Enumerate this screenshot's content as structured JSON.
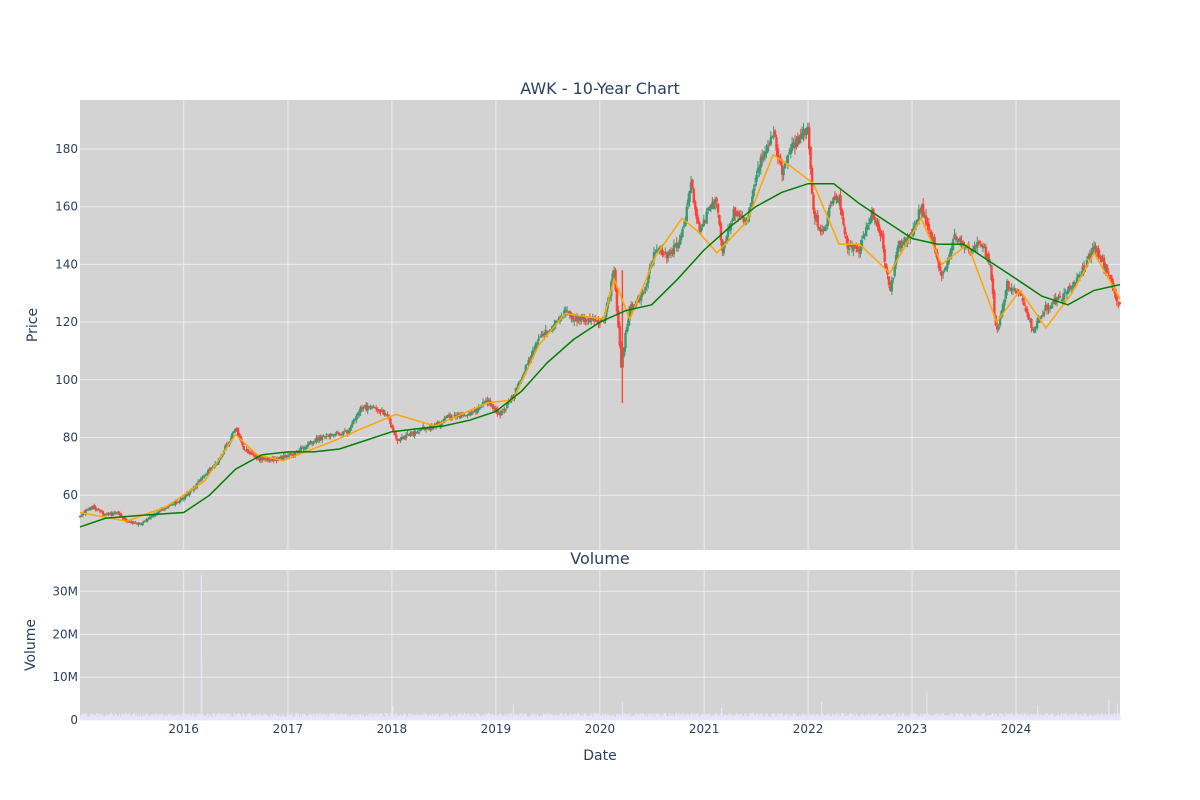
{
  "chart_data": [
    {
      "type": "candlestick",
      "title": "AWK - 10-Year Chart",
      "ylabel": "Price",
      "ylim": [
        41,
        197
      ],
      "y_ticks": [
        60,
        80,
        100,
        120,
        140,
        160,
        180
      ],
      "xlim": [
        "2015-01-02",
        "2024-12-31"
      ],
      "colors": {
        "increasing": "#3d9970",
        "decreasing": "#ff4136",
        "ma_short": "#ffa500",
        "ma_long": "#008000",
        "plot_bg": "#d3d3d3",
        "grid": "#ebebf5"
      },
      "grid": true,
      "legend": "none",
      "price_path": {
        "x": [
          "2015-01-02",
          "2015-02-15",
          "2015-04-01",
          "2015-05-15",
          "2015-06-15",
          "2015-08-01",
          "2015-09-15",
          "2015-11-01",
          "2015-12-15",
          "2016-02-01",
          "2016-03-15",
          "2016-05-01",
          "2016-06-15",
          "2016-07-01",
          "2016-08-01",
          "2016-09-15",
          "2016-11-01",
          "2016-12-15",
          "2017-02-01",
          "2017-03-15",
          "2017-05-01",
          "2017-06-15",
          "2017-08-01",
          "2017-09-15",
          "2017-11-01",
          "2017-12-15",
          "2018-01-15",
          "2018-03-01",
          "2018-04-15",
          "2018-06-01",
          "2018-07-15",
          "2018-09-01",
          "2018-10-15",
          "2018-12-01",
          "2019-01-15",
          "2019-03-01",
          "2019-04-15",
          "2019-06-01",
          "2019-07-15",
          "2019-09-01",
          "2019-10-15",
          "2019-12-01",
          "2020-01-15",
          "2020-02-20",
          "2020-03-16",
          "2020-03-23",
          "2020-04-15",
          "2020-06-01",
          "2020-07-15",
          "2020-09-01",
          "2020-10-15",
          "2020-11-15",
          "2020-12-15",
          "2021-01-15",
          "2021-02-15",
          "2021-03-05",
          "2021-04-15",
          "2021-06-01",
          "2021-07-15",
          "2021-08-31",
          "2021-10-01",
          "2021-11-01",
          "2021-12-31",
          "2022-01-20",
          "2022-02-20",
          "2022-04-01",
          "2022-04-20",
          "2022-05-20",
          "2022-07-01",
          "2022-08-15",
          "2022-09-15",
          "2022-10-15",
          "2022-11-15",
          "2022-12-31",
          "2023-02-01",
          "2023-03-10",
          "2023-04-15",
          "2023-06-01",
          "2023-07-15",
          "2023-09-01",
          "2023-10-01",
          "2023-10-25",
          "2023-12-01",
          "2024-01-15",
          "2024-02-15",
          "2024-03-01",
          "2024-04-15",
          "2024-06-01",
          "2024-07-15",
          "2024-09-01",
          "2024-10-01",
          "2024-11-15",
          "2024-12-31"
        ],
        "close": [
          53,
          56,
          53,
          54,
          51,
          50,
          53,
          56,
          58,
          62,
          67,
          72,
          80,
          83,
          76,
          73,
          72,
          73,
          75,
          78,
          80,
          81,
          82,
          90,
          91,
          88,
          79,
          81,
          83,
          84,
          87,
          88,
          89,
          93,
          88,
          94,
          104,
          115,
          118,
          124,
          121,
          121,
          120,
          138,
          105,
          110,
          125,
          130,
          145,
          143,
          150,
          168,
          152,
          158,
          162,
          145,
          158,
          155,
          175,
          186,
          172,
          180,
          187,
          158,
          150,
          165,
          162,
          146,
          145,
          158,
          150,
          130,
          147,
          150,
          160,
          150,
          135,
          150,
          145,
          148,
          140,
          116,
          133,
          130,
          120,
          118,
          125,
          128,
          132,
          140,
          146,
          138,
          125
        ]
      },
      "moving_averages": [
        {
          "x": [
            "2015-01-02",
            "2015-06-15",
            "2015-11-01",
            "2016-03-15",
            "2016-07-01",
            "2016-09-15",
            "2016-12-15",
            "2017-06-15",
            "2017-09-15",
            "2018-01-15",
            "2018-06-01",
            "2018-12-01",
            "2019-03-01",
            "2019-06-01",
            "2019-09-01",
            "2020-01-15",
            "2020-02-20",
            "2020-04-15",
            "2020-07-15",
            "2020-10-15",
            "2020-12-15",
            "2021-02-15",
            "2021-06-01",
            "2021-08-31",
            "2021-11-01",
            "2022-01-20",
            "2022-04-20",
            "2022-07-01",
            "2022-10-15",
            "2023-02-01",
            "2023-04-15",
            "2023-07-15",
            "2023-10-25",
            "2024-01-15",
            "2024-04-15",
            "2024-07-15",
            "2024-10-01",
            "2024-12-31"
          ],
          "y": [
            54,
            51,
            56,
            65,
            81,
            74,
            72,
            79,
            83,
            88,
            84,
            92,
            93,
            112,
            123,
            121,
            135,
            121,
            143,
            156,
            151,
            144,
            155,
            178,
            174,
            168,
            147,
            147,
            137,
            156,
            140,
            147,
            120,
            131,
            118,
            130,
            144,
            128
          ]
        },
        {
          "x": [
            "2015-01-02",
            "2015-04-01",
            "2015-08-01",
            "2016-01-01",
            "2016-04-01",
            "2016-07-01",
            "2016-10-01",
            "2017-01-01",
            "2017-04-01",
            "2017-07-01",
            "2017-10-01",
            "2018-01-01",
            "2018-04-01",
            "2018-07-01",
            "2018-10-01",
            "2019-01-01",
            "2019-04-01",
            "2019-07-01",
            "2019-10-01",
            "2020-01-01",
            "2020-04-01",
            "2020-07-01",
            "2020-10-01",
            "2021-01-01",
            "2021-04-01",
            "2021-07-01",
            "2021-10-01",
            "2022-01-01",
            "2022-04-01",
            "2022-07-01",
            "2022-10-01",
            "2023-01-01",
            "2023-04-01",
            "2023-07-01",
            "2023-10-01",
            "2024-01-01",
            "2024-04-01",
            "2024-07-01",
            "2024-10-01",
            "2024-12-31"
          ],
          "y": [
            49,
            52,
            53,
            54,
            60,
            69,
            74,
            75,
            75,
            76,
            79,
            82,
            83,
            84,
            86,
            89,
            96,
            106,
            114,
            120,
            124,
            126,
            135,
            145,
            153,
            160,
            165,
            168,
            168,
            161,
            155,
            149,
            147,
            147,
            141,
            135,
            129,
            126,
            131,
            133
          ]
        }
      ]
    },
    {
      "type": "bar",
      "title": "Volume",
      "xlabel": "Date",
      "ylabel": "Volume",
      "ylim": [
        0,
        35000000
      ],
      "y_ticks": [
        0,
        10000000,
        20000000,
        30000000
      ],
      "y_tick_labels": [
        "0",
        "10M",
        "20M",
        "30M"
      ],
      "x_tick_labels": [
        "2016",
        "2017",
        "2018",
        "2019",
        "2020",
        "2021",
        "2022",
        "2023",
        "2024"
      ],
      "x_tick_dates": [
        "2016-01-01",
        "2017-01-01",
        "2018-01-01",
        "2019-01-01",
        "2020-01-01",
        "2021-01-01",
        "2022-01-01",
        "2023-01-01",
        "2024-01-01"
      ],
      "xlim": [
        "2015-01-02",
        "2024-12-31"
      ],
      "bar_color": "#e6e6fa",
      "baseline_volume": 1000000,
      "spikes": [
        {
          "x": "2016-03-01",
          "value": 33800000
        },
        {
          "x": "2016-03-02",
          "value": 13500000
        },
        {
          "x": "2018-01-02",
          "value": 3400000
        },
        {
          "x": "2019-03-01",
          "value": 3600000
        },
        {
          "x": "2020-03-18",
          "value": 4300000
        },
        {
          "x": "2021-03-01",
          "value": 2800000
        },
        {
          "x": "2022-02-15",
          "value": 4200000
        },
        {
          "x": "2023-02-20",
          "value": 6400000
        },
        {
          "x": "2024-03-15",
          "value": 3500000
        },
        {
          "x": "2024-11-20",
          "value": 4700000
        },
        {
          "x": "2024-12-20",
          "value": 3900000
        }
      ]
    }
  ]
}
